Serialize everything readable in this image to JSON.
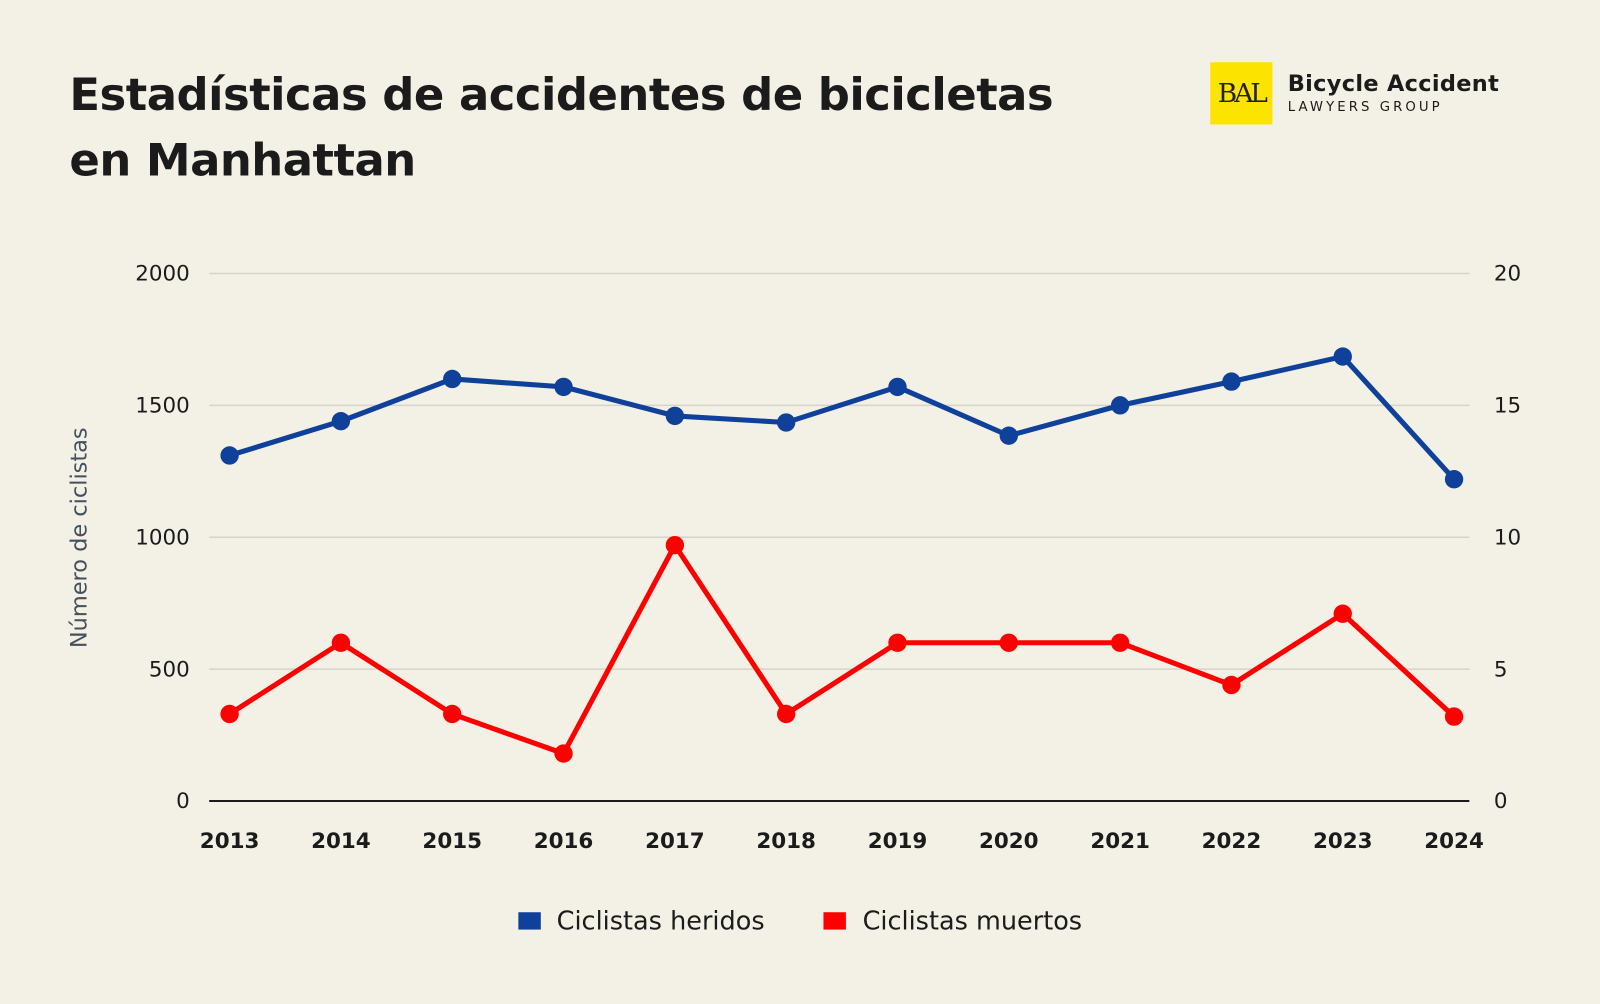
{
  "title": "Estadísticas de accidentes de bicicletas en Manhattan",
  "logo": {
    "mark": "BAL",
    "name": "Bicycle Accident",
    "sub": "LAWYERS GROUP",
    "color": "#fde400"
  },
  "chart_data": {
    "type": "line",
    "title": "Estadísticas de accidentes de bicicletas en Manhattan",
    "ylabel": "Número de ciclistas",
    "xlabel": "",
    "categories": [
      "2013",
      "2014",
      "2015",
      "2016",
      "2017",
      "2018",
      "2019",
      "2020",
      "2021",
      "2022",
      "2023",
      "2024"
    ],
    "y_left": {
      "range": [
        0,
        2000
      ],
      "ticks": [
        "0",
        "500",
        "1000",
        "1500",
        "2000"
      ]
    },
    "y_right": {
      "range": [
        0,
        20
      ],
      "ticks": [
        "0",
        "5",
        "10",
        "15",
        "20"
      ]
    },
    "grid": true,
    "legend_position": "bottom",
    "series": [
      {
        "name": "Ciclistas heridos",
        "axis": "left",
        "color": "#0f409a",
        "values": [
          1310,
          1440,
          1600,
          1570,
          1460,
          1435,
          1570,
          1385,
          1500,
          1590,
          1685,
          1220
        ]
      },
      {
        "name": "Ciclistas muertos",
        "axis": "right",
        "color": "#ff0000",
        "values": [
          3.3,
          6,
          3.3,
          1.8,
          9.7,
          3.3,
          6,
          6,
          6,
          4.4,
          7.1,
          3.2
        ]
      }
    ]
  }
}
